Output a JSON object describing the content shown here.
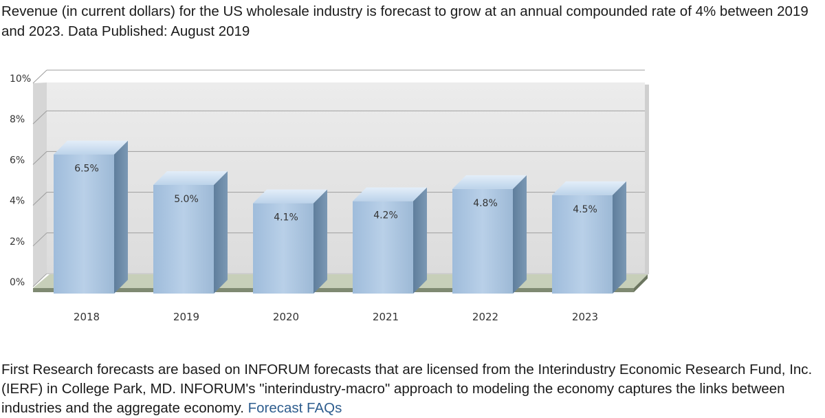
{
  "intro_text": "Revenue (in current dollars) for the US wholesale industry is forecast to grow at an annual compounded rate of 4% between 2019 and 2023. Data Published: August 2019",
  "footer": {
    "text": "First Research forecasts are based on INFORUM forecasts that are licensed from the Interindustry Economic Research Fund, Inc. (IERF) in College Park, MD. INFORUM's \"interindustry-macro\" approach to modeling the economy captures the links between industries and the aggregate economy.",
    "link_label": "Forecast FAQs"
  },
  "chart_data": {
    "type": "bar",
    "categories": [
      "2018",
      "2019",
      "2020",
      "2021",
      "2022",
      "2023"
    ],
    "values": [
      6.5,
      5.0,
      4.1,
      4.2,
      4.8,
      4.5
    ],
    "data_labels": [
      "6.5%",
      "5.0%",
      "4.1%",
      "4.2%",
      "4.8%",
      "4.5%"
    ],
    "y_ticks": [
      "0%",
      "2%",
      "4%",
      "6%",
      "8%",
      "10%"
    ],
    "ylim": [
      0,
      10
    ],
    "title": "",
    "xlabel": "",
    "ylabel": "",
    "grid": true,
    "style": "3d",
    "colors": {
      "bar_front": "#a9c4e0",
      "bar_side": "#6c8ba8",
      "bar_top": "#cfe0f1",
      "wall": "#e4e4e4",
      "floor": "#c7cfb9",
      "grid": "#9d9d9d",
      "tick_text": "#333333"
    }
  }
}
